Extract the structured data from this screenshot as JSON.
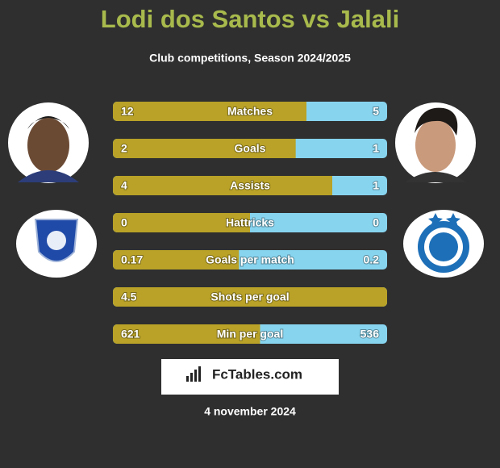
{
  "header": {
    "title": "Lodi dos Santos vs Jalali",
    "subtitle": "Club competitions, Season 2024/2025"
  },
  "colors": {
    "left": "#b9a227",
    "right": "#87d4ef"
  },
  "rows": [
    {
      "label": "Matches",
      "left": 12,
      "right": 5
    },
    {
      "label": "Goals",
      "left": 2,
      "right": 1
    },
    {
      "label": "Assists",
      "left": 4,
      "right": 1
    },
    {
      "label": "Hattricks",
      "left": 0,
      "right": 0
    },
    {
      "label": "Goals per match",
      "left": 0.17,
      "right": 0.2
    },
    {
      "label": "Shots per goal",
      "left": 4.5,
      "right": null
    },
    {
      "label": "Min per goal",
      "left": 621,
      "right": 536
    }
  ],
  "logo": "FcTables.com",
  "date": "4 november 2024"
}
